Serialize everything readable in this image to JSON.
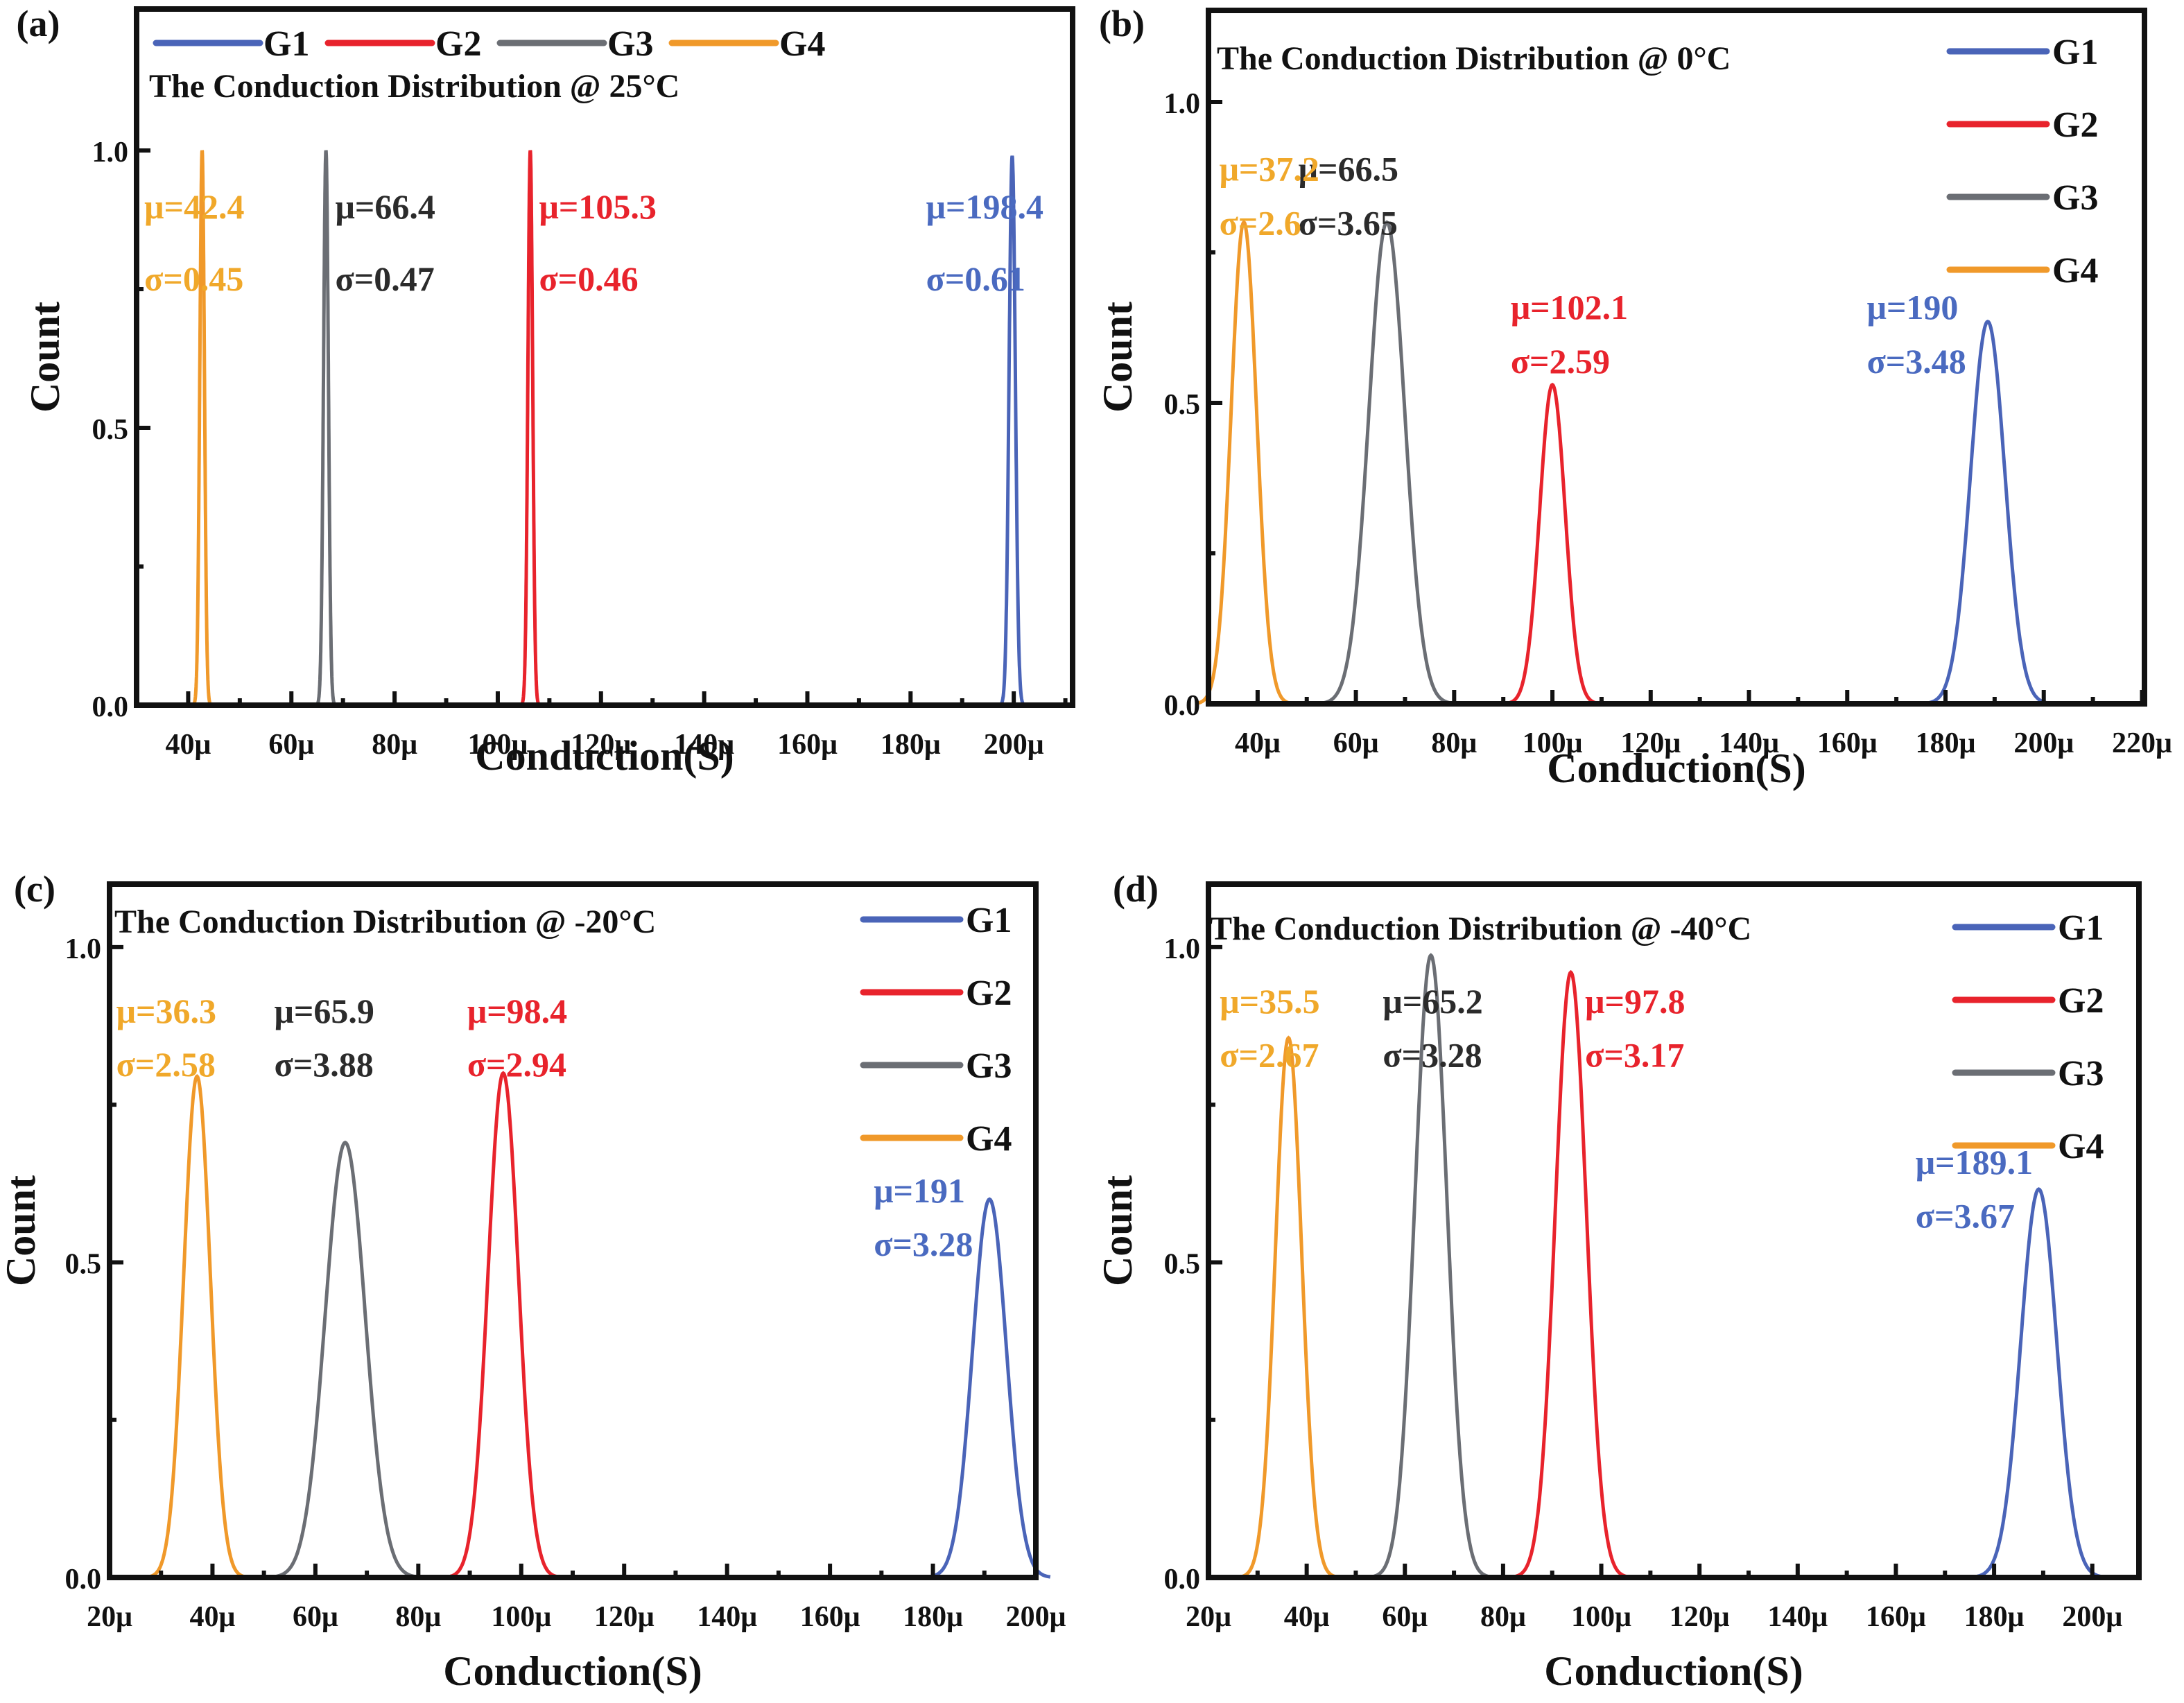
{
  "chart_data": [
    {
      "type": "line",
      "panel_label": "(a)",
      "title": "The Conduction Distribution @ 25°C",
      "xlabel": "Conduction(S)",
      "ylabel": "Count",
      "xlim": [
        30,
        211.4
      ],
      "ylim": [
        0,
        1.255
      ],
      "xticks": [
        40,
        60,
        80,
        100,
        120,
        140,
        160,
        180,
        200
      ],
      "xtick_labels": [
        "40μ",
        "60μ",
        "80μ",
        "100μ",
        "120μ",
        "140μ",
        "160μ",
        "180μ",
        "200μ"
      ],
      "yticks": [
        0.0,
        0.5,
        1.0
      ],
      "ytick_labels": [
        "0.0",
        "0.5",
        "1.0"
      ],
      "legend": {
        "placement": "top-horizontal",
        "entries": [
          "G1",
          "G2",
          "G3",
          "G4"
        ]
      },
      "series": [
        {
          "name": "G1",
          "color": "#4a64b8",
          "peak_x": 199.7,
          "peak_y": 0.99,
          "width": 0.61,
          "annotation": [
            "μ=198.4",
            "σ=0.61"
          ],
          "ann_x": 183,
          "ann_y": [
            0.9,
            0.77
          ]
        },
        {
          "name": "G2",
          "color": "#e8232c",
          "peak_x": 106.3,
          "peak_y": 1.0,
          "width": 0.46,
          "annotation": [
            "μ=105.3",
            "σ=0.46"
          ],
          "ann_x": 108,
          "ann_y": [
            0.9,
            0.77
          ]
        },
        {
          "name": "G3",
          "color": "#6b6e74",
          "peak_x": 66.7,
          "peak_y": 1.0,
          "width": 0.47,
          "annotation": [
            "μ=66.4",
            "σ=0.47"
          ],
          "ann_x": 68.5,
          "ann_y": [
            0.9,
            0.77
          ]
        },
        {
          "name": "G4",
          "color": "#f0992a",
          "peak_x": 42.7,
          "peak_y": 1.0,
          "width": 0.45,
          "annotation": [
            "μ=42.4",
            "σ=0.45"
          ],
          "ann_x": 31.5,
          "ann_y": [
            0.9,
            0.77
          ]
        }
      ]
    },
    {
      "type": "line",
      "panel_label": "(b)",
      "title": "The Conduction Distribution @ 0°C",
      "xlabel": "Conduction(S)",
      "ylabel": "Count",
      "xlim": [
        30,
        220.5
      ],
      "ylim": [
        0,
        1.152
      ],
      "xticks": [
        40,
        60,
        80,
        100,
        120,
        140,
        160,
        180,
        200,
        220
      ],
      "xtick_labels": [
        "40μ",
        "60μ",
        "80μ",
        "100μ",
        "120μ",
        "140μ",
        "160μ",
        "180μ",
        "200μ",
        "220μ"
      ],
      "yticks": [
        0.0,
        0.5,
        1.0
      ],
      "ytick_labels": [
        "0.0",
        "0.5",
        "1.0"
      ],
      "legend": {
        "placement": "top-right",
        "entries": [
          "G1",
          "G2",
          "G3",
          "G4"
        ]
      },
      "series": [
        {
          "name": "G1",
          "color": "#4a64b8",
          "peak_x": 188.6,
          "peak_y": 0.635,
          "width": 3.48,
          "annotation": [
            "μ=190",
            "σ=3.48"
          ],
          "ann_x": 164,
          "ann_y": [
            0.66,
            0.57
          ]
        },
        {
          "name": "G2",
          "color": "#e8232c",
          "peak_x": 100.0,
          "peak_y": 0.53,
          "width": 2.59,
          "annotation": [
            "μ=102.1",
            "σ=2.59"
          ],
          "ann_x": 91.5,
          "ann_y": [
            0.66,
            0.57
          ]
        },
        {
          "name": "G3",
          "color": "#6b6e74",
          "peak_x": 66.3,
          "peak_y": 0.8,
          "width": 3.65,
          "annotation": [
            "μ=66.5",
            "σ=3.65"
          ],
          "ann_x": 48.3,
          "ann_y": [
            0.89,
            0.8
          ]
        },
        {
          "name": "G4",
          "color": "#f0992a",
          "peak_x": 37.2,
          "peak_y": 0.8,
          "width": 2.6,
          "annotation": [
            "μ=37.2",
            "σ=2.6"
          ],
          "ann_x": 32.2,
          "ann_y": [
            0.89,
            0.8
          ]
        }
      ]
    },
    {
      "type": "line",
      "panel_label": "(c)",
      "title": "The Conduction Distribution @ -20°C",
      "xlabel": "Conduction(S)",
      "ylabel": "Count",
      "xlim": [
        20,
        200
      ],
      "ylim": [
        0,
        1.1
      ],
      "xticks": [
        20,
        40,
        60,
        80,
        100,
        120,
        140,
        160,
        180,
        200
      ],
      "xtick_labels": [
        "20μ",
        "40μ",
        "60μ",
        "80μ",
        "100μ",
        "120μ",
        "140μ",
        "160μ",
        "180μ",
        "200μ"
      ],
      "yticks": [
        0.0,
        0.5,
        1.0
      ],
      "ytick_labels": [
        "0.0",
        "0.5",
        "1.0"
      ],
      "legend": {
        "placement": "top-right",
        "entries": [
          "G1",
          "G2",
          "G3",
          "G4"
        ]
      },
      "series": [
        {
          "name": "G1",
          "color": "#4a64b8",
          "peak_x": 191.0,
          "peak_y": 0.6,
          "width": 3.28,
          "annotation": [
            "μ=191",
            "σ=3.28"
          ],
          "ann_x": 168.5,
          "ann_y": [
            0.615,
            0.53
          ]
        },
        {
          "name": "G2",
          "color": "#e8232c",
          "peak_x": 96.5,
          "peak_y": 0.8,
          "width": 2.94,
          "annotation": [
            "μ=98.4",
            "σ=2.94"
          ],
          "ann_x": 89.5,
          "ann_y": [
            0.9,
            0.815
          ]
        },
        {
          "name": "G3",
          "color": "#6b6e74",
          "peak_x": 65.8,
          "peak_y": 0.69,
          "width": 3.88,
          "annotation": [
            "μ=65.9",
            "σ=3.88"
          ],
          "ann_x": 52,
          "ann_y": [
            0.9,
            0.815
          ]
        },
        {
          "name": "G4",
          "color": "#f0992a",
          "peak_x": 37.0,
          "peak_y": 0.795,
          "width": 2.58,
          "annotation": [
            "μ=36.3",
            "σ=2.58"
          ],
          "ann_x": 21.3,
          "ann_y": [
            0.9,
            0.815
          ]
        }
      ]
    },
    {
      "type": "line",
      "panel_label": "(d)",
      "title": "The Conduction Distribution @ -40°C",
      "xlabel": "Conduction(S)",
      "ylabel": "Count",
      "xlim": [
        20,
        209.5
      ],
      "ylim": [
        0,
        1.1
      ],
      "xticks": [
        20,
        40,
        60,
        80,
        100,
        120,
        140,
        160,
        180,
        200
      ],
      "xtick_labels": [
        "20μ",
        "40μ",
        "60μ",
        "80μ",
        "100μ",
        "120μ",
        "140μ",
        "160μ",
        "180μ",
        "200μ"
      ],
      "yticks": [
        0.0,
        0.5,
        1.0
      ],
      "ytick_labels": [
        "0.0",
        "0.5",
        "1.0"
      ],
      "legend": {
        "placement": "top-right",
        "entries": [
          "G1",
          "G2",
          "G3",
          "G4"
        ]
      },
      "series": [
        {
          "name": "G1",
          "color": "#4a64b8",
          "peak_x": 189.1,
          "peak_y": 0.616,
          "width": 3.67,
          "annotation": [
            "μ=189.1",
            "σ=3.67"
          ],
          "ann_x": 164,
          "ann_y": [
            0.66,
            0.575
          ]
        },
        {
          "name": "G2",
          "color": "#e8232c",
          "peak_x": 93.8,
          "peak_y": 0.96,
          "width": 3.17,
          "annotation": [
            "μ=97.8",
            "σ=3.17"
          ],
          "ann_x": 96.7,
          "ann_y": [
            0.915,
            0.83
          ]
        },
        {
          "name": "G3",
          "color": "#6b6e74",
          "peak_x": 65.3,
          "peak_y": 0.987,
          "width": 3.28,
          "annotation": [
            "μ=65.2",
            "σ=3.28"
          ],
          "ann_x": 55.5,
          "ann_y": [
            0.915,
            0.83
          ]
        },
        {
          "name": "G4",
          "color": "#f0992a",
          "peak_x": 36.3,
          "peak_y": 0.856,
          "width": 2.67,
          "annotation": [
            "μ=35.5",
            "σ=2.67"
          ],
          "ann_x": 22.3,
          "ann_y": [
            0.915,
            0.83
          ]
        }
      ]
    }
  ],
  "colors": {
    "G1": "#4a64b8",
    "G2": "#e8232c",
    "G3": "#6b6e74",
    "G4": "#f0992a",
    "G1_text": "#4a6ac0",
    "G2_text": "#e8232c",
    "G3_text": "#2b2b2b",
    "G4_text": "#f0a82a",
    "axis": "#111111"
  }
}
